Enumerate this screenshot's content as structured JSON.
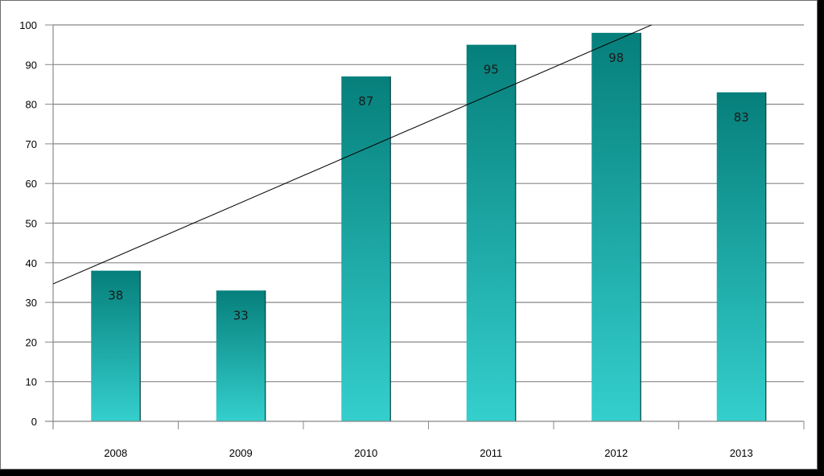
{
  "chart_data": {
    "type": "bar",
    "title": "",
    "xlabel": "",
    "ylabel": "",
    "categories": [
      "2008",
      "2009",
      "2010",
      "2011",
      "2012",
      "2013"
    ],
    "values": [
      38,
      33,
      87,
      95,
      98,
      83
    ],
    "data_labels": [
      "38",
      "33",
      "87",
      "95",
      "98",
      "83"
    ],
    "ylim": [
      0,
      100
    ],
    "yticks": [
      0,
      10,
      20,
      30,
      40,
      50,
      60,
      70,
      80,
      90,
      100
    ],
    "ytick_labels": [
      "0",
      "10",
      "20",
      "30",
      "40",
      "50",
      "60",
      "70",
      "80",
      "90",
      "100"
    ],
    "grid": true,
    "legend": "none",
    "trendline": {
      "type": "linear",
      "start": {
        "x": "2008",
        "y": 41.5
      },
      "end": {
        "x": "2013",
        "y": 109.8
      }
    },
    "colors": {
      "bar_top": "#067f7b",
      "bar_bottom": "#34cfcd",
      "grid": "#888888",
      "trendline": "#000000"
    }
  }
}
